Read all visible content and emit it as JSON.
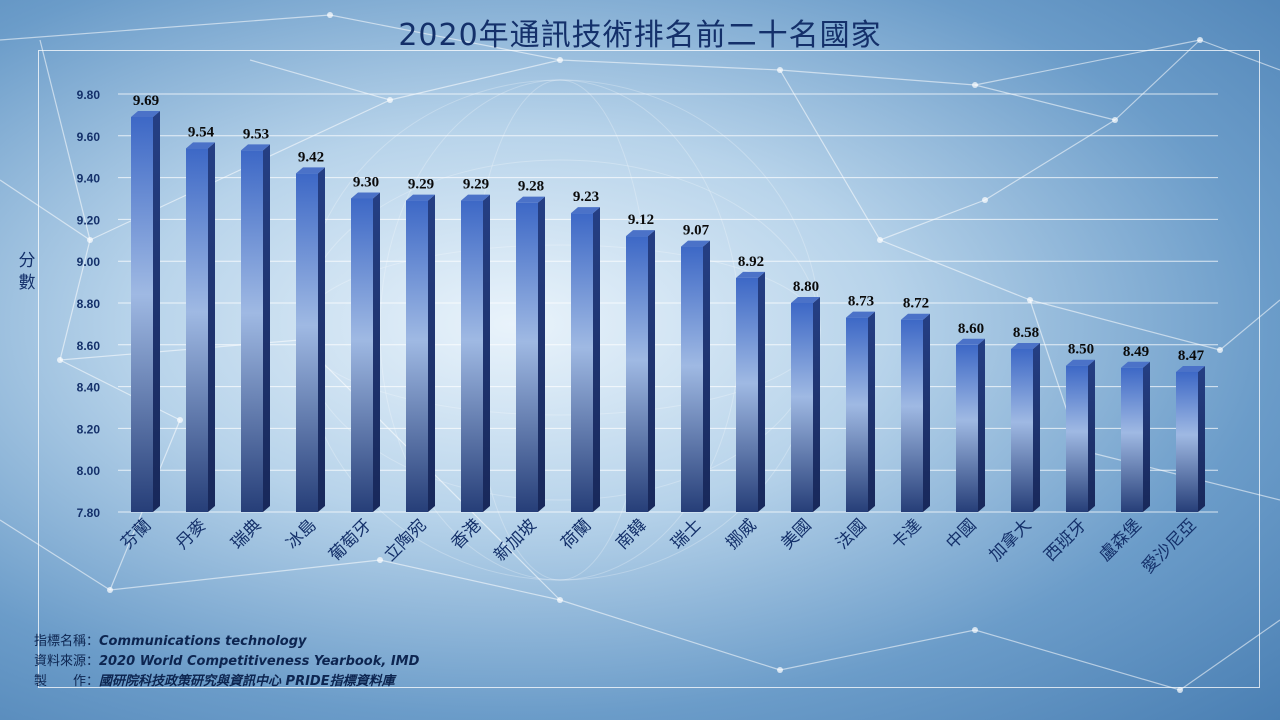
{
  "title": "2020年通訊技術排名前二十名國家",
  "ylabel": "分數",
  "notes": [
    {
      "label": "指標名稱：",
      "value": "Communications technology"
    },
    {
      "label": "資料來源：",
      "value": "2020 World Competitiveness Yearbook, IMD"
    },
    {
      "label": "製　　作：",
      "value": "國研院科技政策研究與資訊中心 PRIDE指標資料庫"
    }
  ],
  "colors": {
    "bar_top": "#3f69c4",
    "bar_mid": "#9db8e2",
    "bar_bottom": "#2a447e",
    "text": "#14306a"
  },
  "chart_data": {
    "type": "bar",
    "title": "2020年通訊技術排名前二十名國家",
    "xlabel": "",
    "ylabel": "分數",
    "ylim": [
      7.8,
      9.8
    ],
    "yticks": [
      "7.80",
      "8.00",
      "8.20",
      "8.40",
      "8.60",
      "8.80",
      "9.00",
      "9.20",
      "9.40",
      "9.60",
      "9.80"
    ],
    "grid": true,
    "categories": [
      "芬蘭",
      "丹麥",
      "瑞典",
      "冰島",
      "葡萄牙",
      "立陶宛",
      "香港",
      "新加坡",
      "荷蘭",
      "南韓",
      "瑞士",
      "挪威",
      "美國",
      "法國",
      "卡達",
      "中國",
      "加拿大",
      "西班牙",
      "盧森堡",
      "愛沙尼亞"
    ],
    "values": [
      9.69,
      9.54,
      9.53,
      9.42,
      9.3,
      9.29,
      9.29,
      9.28,
      9.23,
      9.12,
      9.07,
      8.92,
      8.8,
      8.73,
      8.72,
      8.6,
      8.58,
      8.5,
      8.49,
      8.47
    ],
    "value_labels": [
      "9.69",
      "9.54",
      "9.53",
      "9.42",
      "9.30",
      "9.29",
      "9.29",
      "9.28",
      "9.23",
      "9.12",
      "9.07",
      "8.92",
      "8.80",
      "8.73",
      "8.72",
      "8.60",
      "8.58",
      "8.50",
      "8.49",
      "8.47"
    ]
  }
}
